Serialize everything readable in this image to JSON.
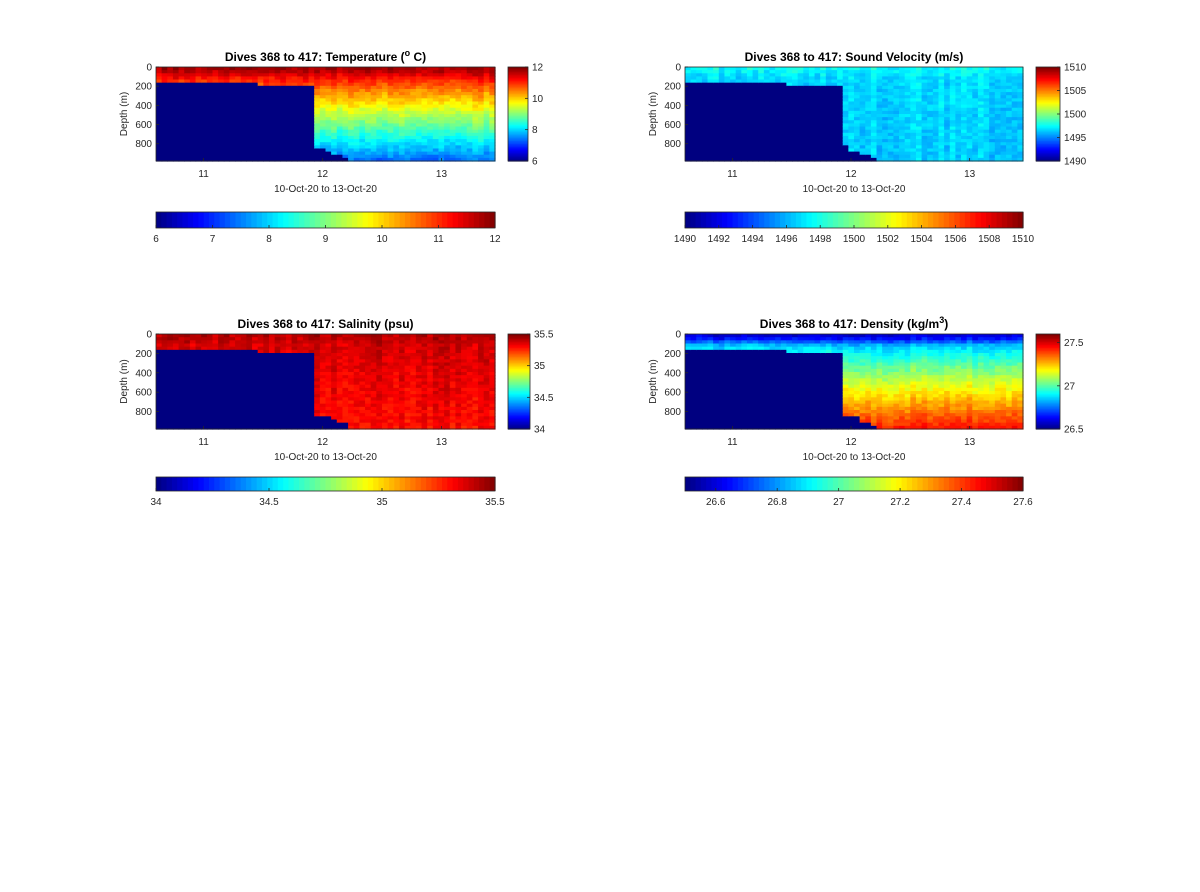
{
  "chart_data": [
    {
      "type": "heatmap",
      "title_main": "Dives 368 to 417: Temperature (",
      "title_sup": "o",
      "title_end": " C)",
      "xlabel": "10-Oct-20 to 13-Oct-20",
      "ylabel": "Depth (m)",
      "x_ticks": [
        "11",
        "12",
        "13"
      ],
      "x_tick_values": [
        11,
        12,
        13
      ],
      "xlim": [
        10.6,
        13.45
      ],
      "y_ticks": [
        "0",
        "200",
        "400",
        "600",
        "800"
      ],
      "y_tick_values": [
        0,
        200,
        400,
        600,
        800
      ],
      "ylim": [
        0,
        980
      ],
      "colorbar_ticks": [
        "6",
        "8",
        "10",
        "12"
      ],
      "colorbar_values": [
        6,
        8,
        10,
        12
      ],
      "clim": [
        6,
        12
      ],
      "hcolorbar_ticks": [
        "6",
        "7",
        "8",
        "9",
        "10",
        "11",
        "12"
      ],
      "hcolorbar_values": [
        6,
        7,
        8,
        9,
        10,
        11,
        12
      ],
      "profile": {
        "surface": 11.8,
        "mixed": 11.2,
        "mixed_depth": 120,
        "deep": 7.4,
        "deep_depth": 980,
        "nodata_value": 6
      }
    },
    {
      "type": "heatmap",
      "title_main": "Dives 368 to 417: Sound Velocity (m/s)",
      "title_sup": "",
      "title_end": "",
      "xlabel": "10-Oct-20 to 13-Oct-20",
      "ylabel": "Depth (m)",
      "x_ticks": [
        "11",
        "12",
        "13"
      ],
      "x_tick_values": [
        11,
        12,
        13
      ],
      "xlim": [
        10.6,
        13.45
      ],
      "y_ticks": [
        "0",
        "200",
        "400",
        "600",
        "800"
      ],
      "y_tick_values": [
        0,
        200,
        400,
        600,
        800
      ],
      "ylim": [
        0,
        980
      ],
      "colorbar_ticks": [
        "1490",
        "1495",
        "1500",
        "1505",
        "1510"
      ],
      "colorbar_values": [
        1490,
        1495,
        1500,
        1505,
        1510
      ],
      "clim": [
        1490,
        1510
      ],
      "hcolorbar_ticks": [
        "1490",
        "1492",
        "1494",
        "1496",
        "1498",
        "1500",
        "1502",
        "1504",
        "1506",
        "1508",
        "1510"
      ],
      "hcolorbar_values": [
        1490,
        1492,
        1494,
        1496,
        1498,
        1500,
        1502,
        1504,
        1506,
        1508,
        1510
      ],
      "profile": {
        "surface": 1497.5,
        "mixed": 1496.8,
        "mixed_depth": 120,
        "deep": 1496.5,
        "deep_depth": 980,
        "nodata_value": 1490
      }
    },
    {
      "type": "heatmap",
      "title_main": "Dives 368 to 417: Salinity (psu)",
      "title_sup": "",
      "title_end": "",
      "xlabel": "10-Oct-20 to 13-Oct-20",
      "ylabel": "Depth (m)",
      "x_ticks": [
        "11",
        "12",
        "13"
      ],
      "x_tick_values": [
        11,
        12,
        13
      ],
      "xlim": [
        10.6,
        13.45
      ],
      "y_ticks": [
        "0",
        "200",
        "400",
        "600",
        "800"
      ],
      "y_tick_values": [
        0,
        200,
        400,
        600,
        800
      ],
      "ylim": [
        0,
        980
      ],
      "colorbar_ticks": [
        "34",
        "34.5",
        "35",
        "35.5"
      ],
      "colorbar_values": [
        34,
        34.5,
        35,
        35.5
      ],
      "clim": [
        34,
        35.5
      ],
      "hcolorbar_ticks": [
        "34",
        "34.5",
        "35",
        "35.5"
      ],
      "hcolorbar_values": [
        34,
        34.5,
        35,
        35.5
      ],
      "profile": {
        "surface": 35.42,
        "mixed": 35.38,
        "mixed_depth": 120,
        "deep": 35.3,
        "deep_depth": 980,
        "nodata_value": 34
      }
    },
    {
      "type": "heatmap",
      "title_main": "Dives 368 to 417: Density (kg/m",
      "title_sup": "3",
      "title_end": ")",
      "xlabel": "10-Oct-20 to 13-Oct-20",
      "ylabel": "Depth (m)",
      "x_ticks": [
        "11",
        "12",
        "13"
      ],
      "x_tick_values": [
        11,
        12,
        13
      ],
      "xlim": [
        10.6,
        13.45
      ],
      "y_ticks": [
        "0",
        "200",
        "400",
        "600",
        "800"
      ],
      "y_tick_values": [
        0,
        200,
        400,
        600,
        800
      ],
      "ylim": [
        0,
        980
      ],
      "colorbar_ticks": [
        "26.5",
        "27",
        "27.5"
      ],
      "colorbar_values": [
        26.5,
        27,
        27.5
      ],
      "clim": [
        26.5,
        27.6
      ],
      "hcolorbar_ticks": [
        "26.6",
        "26.8",
        "27",
        "27.2",
        "27.4",
        "27.6"
      ],
      "hcolorbar_values": [
        26.6,
        26.8,
        27,
        27.2,
        27.4,
        27.6
      ],
      "profile": {
        "surface": 26.6,
        "mixed": 26.85,
        "mixed_depth": 120,
        "deep": 27.45,
        "deep_depth": 980,
        "nodata_value": 26.5
      }
    }
  ],
  "nodata_boundary": {
    "time_start": 10.6,
    "time_break": 11.93,
    "depth_start": 150,
    "depth_break": 195,
    "time_end_partial": 12.3,
    "colormap": "jet"
  }
}
